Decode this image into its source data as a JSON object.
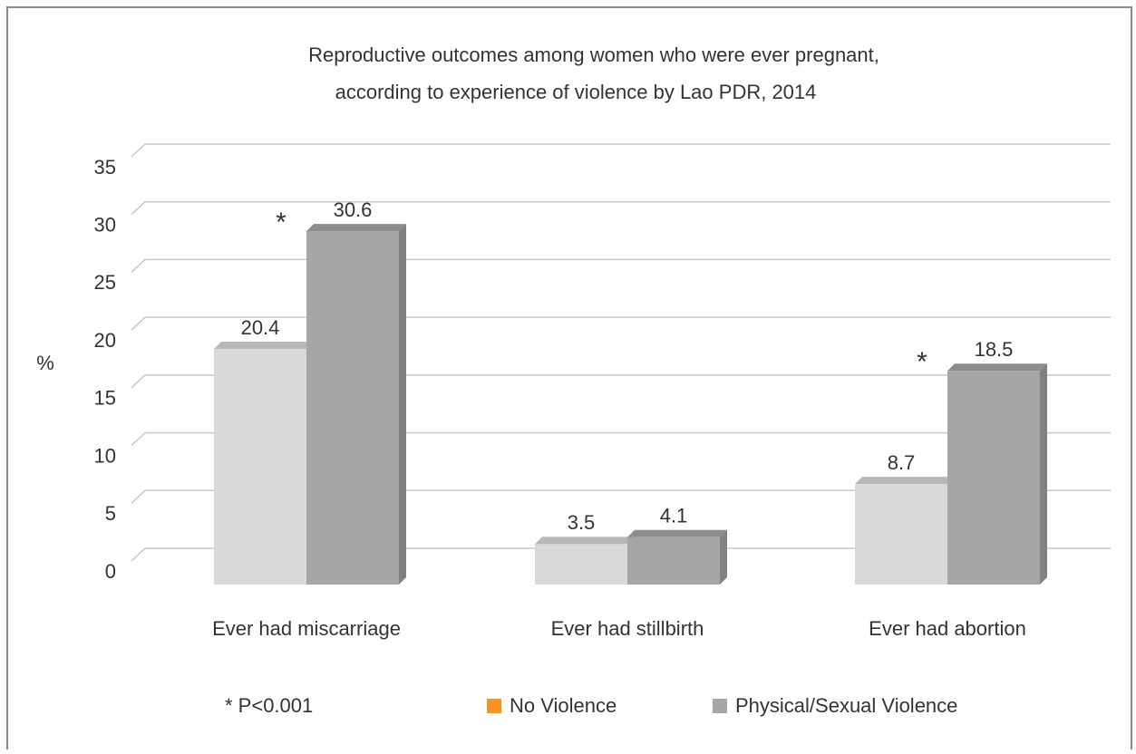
{
  "chart_data": {
    "type": "bar3d",
    "title": [
      "Reproductive  outcomes among women who were ever pregnant,",
      "according to experience of violence by Lao PDR, 2014"
    ],
    "y_label": "%",
    "categories": [
      "Ever had miscarriage",
      "Ever had stillbirth",
      "Ever had abortion"
    ],
    "series": [
      {
        "name": "No Violence",
        "color": "#d9d9db",
        "legend_color": "#f7941d",
        "values": [
          20.4,
          3.5,
          8.7
        ]
      },
      {
        "name": "Physical/Sexual Violence",
        "color": "#a6a6a8",
        "legend_color": "#a6a6a8",
        "values": [
          30.6,
          4.1,
          18.5
        ],
        "marker": "*",
        "significant": [
          true,
          false,
          true
        ]
      }
    ],
    "footnote": "* P<0.001",
    "ylim": [
      0,
      35
    ],
    "yticks": [
      0,
      5,
      10,
      15,
      20,
      25,
      30,
      35
    ],
    "grid": true
  }
}
